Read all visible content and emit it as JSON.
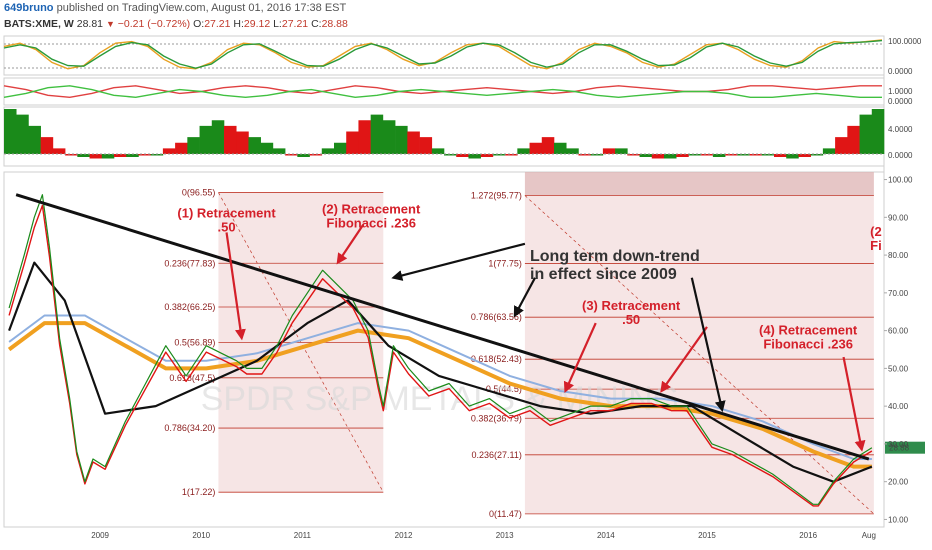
{
  "header": {
    "user": "649bruno",
    "published": "published on TradingView.com, August 01, 2016 17:38 EST",
    "symbol": "BATS:XME, W",
    "last": "28.81",
    "change": "−0.21 (−0.72%)",
    "o_label": "O:",
    "o": "27.21",
    "h_label": "H:",
    "h": "29.12",
    "l_label": "L:",
    "l": "27.21",
    "c_label": "C:",
    "c": "28.88"
  },
  "watermark": "SPDR S&P METALS & MINING",
  "colors": {
    "fib_line": "#c0392b",
    "fib_zone": "#efcfcf",
    "trendline": "#111111",
    "annotation": "#d4202a",
    "up": "#1a8a1a",
    "down": "#e01515"
  },
  "chart_data": {
    "type": "line",
    "title": "",
    "x_ticks": [
      "2009",
      "2010",
      "2011",
      "2012",
      "2013",
      "2014",
      "2015",
      "2016",
      "Aug"
    ],
    "y_ticks": [
      "100.00",
      "90.00",
      "80.00",
      "70.00",
      "60.00",
      "50.00",
      "40.00",
      "30.00",
      "20.00",
      "10.00"
    ],
    "price_label": "28.88",
    "ylim": [
      8,
      102
    ],
    "xlim": [
      2008.0,
      2016.7
    ],
    "price": {
      "x": [
        2008.05,
        2008.2,
        2008.3,
        2008.38,
        2008.45,
        2008.55,
        2008.65,
        2008.72,
        2008.8,
        2008.88,
        2009.0,
        2009.2,
        2009.4,
        2009.6,
        2009.8,
        2010.0,
        2010.15,
        2010.3,
        2010.4,
        2010.55,
        2010.7,
        2010.85,
        2011.0,
        2011.15,
        2011.3,
        2011.45,
        2011.6,
        2011.7,
        2011.75,
        2011.85,
        2012.0,
        2012.2,
        2012.4,
        2012.6,
        2012.8,
        2013.0,
        2013.2,
        2013.4,
        2013.6,
        2013.8,
        2014.0,
        2014.2,
        2014.4,
        2014.6,
        2014.75,
        2014.9,
        2015.0,
        2015.2,
        2015.4,
        2015.6,
        2015.8,
        2016.0,
        2016.05,
        2016.2,
        2016.4,
        2016.58
      ],
      "y": [
        66,
        80,
        90,
        96,
        82,
        58,
        42,
        28,
        20,
        26,
        24,
        36,
        46,
        56,
        48,
        56,
        54,
        52,
        50,
        50,
        56,
        64,
        70,
        76,
        72,
        68,
        60,
        46,
        40,
        56,
        50,
        44,
        46,
        40,
        42,
        38,
        40,
        36,
        38,
        40,
        40,
        42,
        42,
        40,
        40,
        34,
        30,
        28,
        25,
        22,
        18,
        14,
        14,
        20,
        26,
        29
      ]
    },
    "ema": {
      "x": [
        2008.05,
        2008.3,
        2008.6,
        2009.0,
        2009.5,
        2010.0,
        2010.5,
        2011.0,
        2011.4,
        2011.8,
        2012.3,
        2012.8,
        2013.3,
        2013.8,
        2014.3,
        2014.8,
        2015.3,
        2015.8,
        2016.2,
        2016.58
      ],
      "y": [
        60,
        78,
        68,
        38,
        40,
        46,
        52,
        62,
        68,
        56,
        48,
        44,
        40,
        38,
        40,
        40,
        32,
        24,
        20,
        24
      ]
    },
    "sma": {
      "x": [
        2008.05,
        2008.4,
        2008.8,
        2009.2,
        2009.6,
        2010.0,
        2010.5,
        2011.0,
        2011.5,
        2012.0,
        2012.5,
        2013.0,
        2013.5,
        2014.0,
        2014.5,
        2015.0,
        2015.5,
        2016.0,
        2016.4,
        2016.58
      ],
      "y": [
        55,
        62,
        62,
        56,
        50,
        50,
        52,
        56,
        60,
        58,
        52,
        46,
        42,
        40,
        40,
        38,
        34,
        28,
        24,
        24
      ]
    },
    "trendline": {
      "x": [
        2008.12,
        2016.55
      ],
      "y": [
        96,
        26
      ],
      "label": "Long term down-trend in effect since 2009"
    },
    "fib_sets": [
      {
        "x_start": 2010.12,
        "x_end": 2011.75,
        "levels": [
          {
            "label": "0(96.55)",
            "value": 96.55
          },
          {
            "label": "0.236(77.83)",
            "value": 77.83
          },
          {
            "label": "0.382(66.25)",
            "value": 66.25
          },
          {
            "label": "0.5(56.89)",
            "value": 56.89
          },
          {
            "label": "0.618(47.5)",
            "value": 47.5
          },
          {
            "label": "0.786(34.20)",
            "value": 34.2
          },
          {
            "label": "1(17.22)",
            "value": 17.22
          }
        ]
      },
      {
        "x_start": 2013.15,
        "x_end": 2016.6,
        "levels": [
          {
            "label": "1.272(95.77)",
            "value": 95.77
          },
          {
            "label": "1(77.75)",
            "value": 77.75
          },
          {
            "label": "0.786(63.56)",
            "value": 63.56
          },
          {
            "label": "0.618(52.43)",
            "value": 52.43
          },
          {
            "label": "0.5(44.5)",
            "value": 44.5
          },
          {
            "label": "0.382(36.79)",
            "value": 36.79
          },
          {
            "label": "0.236(27.11)",
            "value": 27.11
          },
          {
            "label": "0(11.47)",
            "value": 11.47
          }
        ]
      }
    ],
    "annotations": [
      {
        "lines": [
          "(1) Retracement",
          ".50"
        ],
        "x": 2010.2,
        "y": 90
      },
      {
        "lines": [
          "(2) Retracement",
          "Fibonacci .236"
        ],
        "x": 2011.63,
        "y": 91
      },
      {
        "lines": [
          "(3) Retracement",
          ".50"
        ],
        "x": 2014.2,
        "y": 65.5
      },
      {
        "lines": [
          "(4) Retracement",
          "Fibonacci .236"
        ],
        "x": 2015.95,
        "y": 59
      },
      {
        "lines": [
          "(2",
          "Fi"
        ],
        "x": 2016.62,
        "y": 85
      }
    ],
    "arrows": [
      {
        "from": [
          2010.2,
          86
        ],
        "to": [
          2010.35,
          58
        ],
        "color": "#d4202a"
      },
      {
        "from": [
          2011.55,
          88
        ],
        "to": [
          2011.3,
          78
        ],
        "color": "#d4202a"
      },
      {
        "from": [
          2013.85,
          62
        ],
        "to": [
          2013.55,
          44
        ],
        "color": "#d4202a"
      },
      {
        "from": [
          2014.95,
          61
        ],
        "to": [
          2014.5,
          44
        ],
        "color": "#d4202a"
      },
      {
        "from": [
          2016.3,
          53
        ],
        "to": [
          2016.48,
          28.5
        ],
        "color": "#d4202a"
      },
      {
        "from": [
          2013.15,
          83
        ],
        "to": [
          2011.85,
          74
        ],
        "color": "#111111"
      },
      {
        "from": [
          2013.25,
          74
        ],
        "to": [
          2013.05,
          64
        ],
        "color": "#111111"
      },
      {
        "from": [
          2014.8,
          74
        ],
        "to": [
          2015.1,
          39
        ],
        "color": "#111111"
      }
    ],
    "stochastic": {
      "ticks": [
        "100.0000",
        "0.0000"
      ],
      "k": [
        80,
        90,
        70,
        30,
        10,
        20,
        60,
        90,
        95,
        80,
        40,
        15,
        10,
        30,
        70,
        90,
        85,
        60,
        30,
        15,
        20,
        50,
        80,
        90,
        70,
        40,
        20,
        30,
        60,
        85,
        90,
        80,
        50,
        20,
        10,
        30,
        70,
        90,
        80,
        60,
        30,
        15,
        25,
        55,
        85,
        90,
        70,
        40,
        20,
        15,
        35,
        75,
        95,
        90,
        95,
        100
      ],
      "d": [
        75,
        85,
        75,
        40,
        20,
        18,
        50,
        80,
        92,
        85,
        50,
        25,
        12,
        25,
        60,
        85,
        88,
        65,
        40,
        20,
        18,
        40,
        70,
        88,
        75,
        50,
        25,
        28,
        50,
        78,
        90,
        85,
        60,
        30,
        15,
        25,
        60,
        85,
        85,
        65,
        40,
        20,
        22,
        45,
        78,
        90,
        78,
        50,
        28,
        18,
        30,
        65,
        88,
        92,
        94,
        98
      ]
    },
    "osc2": {
      "ticks": [
        "1.0000",
        "0.0000"
      ],
      "a": [
        0.9,
        0.7,
        0.4,
        0.3,
        0.5,
        0.8,
        0.9,
        0.7,
        0.5,
        0.6,
        0.8,
        0.9,
        0.8,
        0.6,
        0.5,
        0.7,
        0.9,
        0.8,
        0.6,
        0.5,
        0.6,
        0.7,
        0.8,
        0.7,
        0.6,
        0.5,
        0.6,
        0.8,
        0.9,
        0.8,
        0.7,
        0.6,
        0.6,
        0.7,
        0.9,
        0.9,
        0.8,
        0.7,
        0.8,
        0.9,
        0.9
      ],
      "b": [
        0.3,
        0.5,
        0.8,
        0.9,
        0.7,
        0.4,
        0.3,
        0.5,
        0.7,
        0.6,
        0.4,
        0.3,
        0.4,
        0.6,
        0.7,
        0.5,
        0.3,
        0.4,
        0.6,
        0.7,
        0.6,
        0.5,
        0.4,
        0.5,
        0.6,
        0.7,
        0.6,
        0.4,
        0.3,
        0.4,
        0.5,
        0.6,
        0.6,
        0.5,
        0.3,
        0.3,
        0.4,
        0.5,
        0.4,
        0.3,
        0.3
      ]
    },
    "histogram": {
      "ticks": [
        "4.0000",
        "0.0000"
      ],
      "values": [
        8,
        7,
        5,
        3,
        1,
        -1,
        -2,
        -3,
        -3,
        -2,
        -2,
        -1,
        -1,
        1,
        2,
        3,
        5,
        6,
        5,
        4,
        3,
        2,
        1,
        -1,
        -2,
        -1,
        1,
        2,
        4,
        6,
        7,
        6,
        5,
        4,
        3,
        1,
        -1,
        -2,
        -3,
        -2,
        -1,
        -1,
        1,
        2,
        3,
        2,
        1,
        -1,
        -1,
        1,
        1,
        -1,
        -2,
        -3,
        -3,
        -2,
        -1,
        -1,
        -2,
        -1,
        -1,
        -1,
        -1,
        -2,
        -3,
        -2,
        -1,
        1,
        3,
        5,
        7,
        8
      ]
    }
  }
}
